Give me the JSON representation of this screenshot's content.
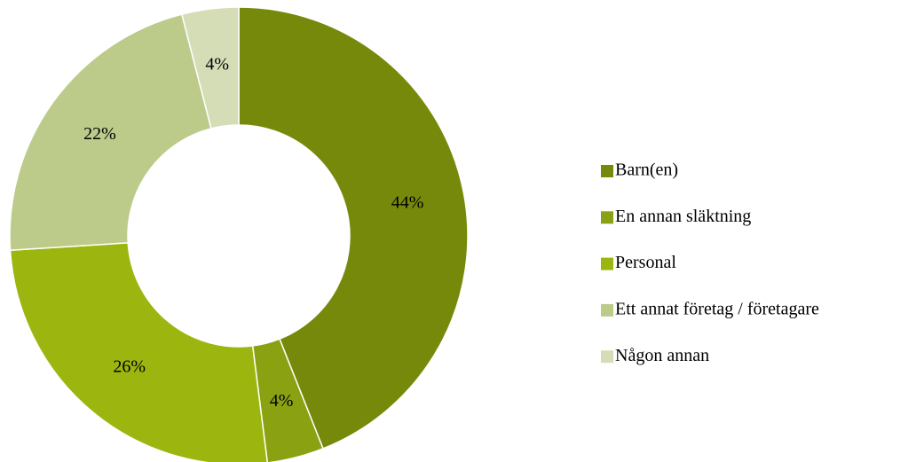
{
  "chart_data": {
    "type": "donut",
    "categories": [
      "Barn(en)",
      "En annan släktning",
      "Personal",
      "Ett annat företag / företagare",
      "Någon annan"
    ],
    "values": [
      44,
      4,
      26,
      22,
      4
    ],
    "value_labels": [
      "44%",
      "4%",
      "26%",
      "22%",
      "4%"
    ],
    "colors": [
      "#77890a",
      "#8aa112",
      "#9db60f",
      "#bccb8a",
      "#d5ddb7"
    ],
    "legend": "right"
  }
}
